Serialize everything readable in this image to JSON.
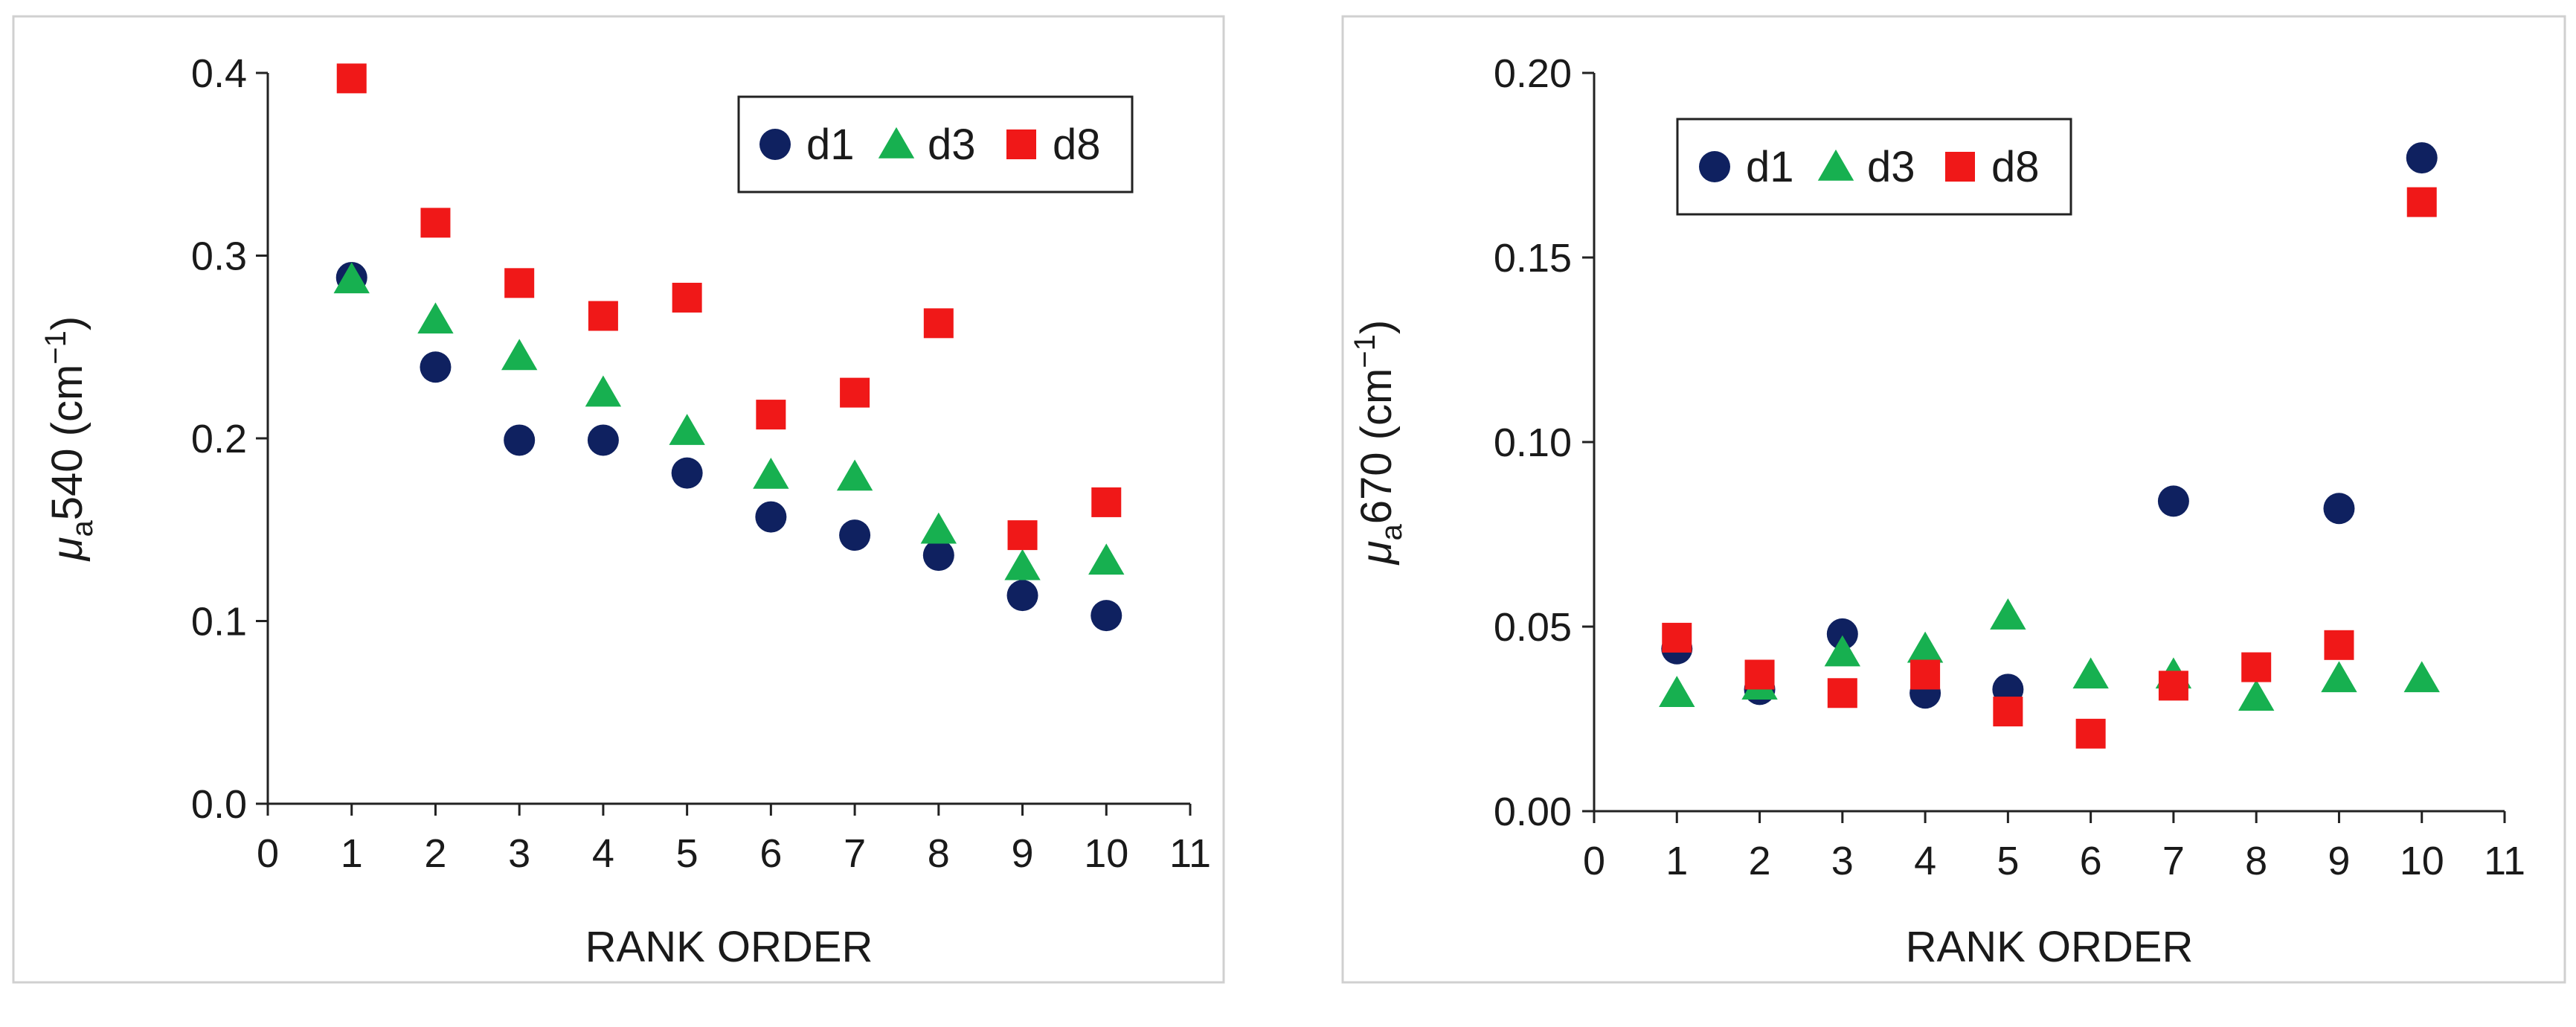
{
  "colors": {
    "d1": "#0f2160",
    "d3": "#17b050",
    "d8": "#f01818",
    "axis": "#222222",
    "frame": "#d0d0d0"
  },
  "chart_data": [
    {
      "type": "scatter",
      "xlabel": "RANK ORDER",
      "ylabel_main": "μ",
      "ylabel_sub": "a",
      "ylabel_rest": "540 (cm",
      "ylabel_sup": "−1",
      "ylabel_end": ")",
      "xlim": [
        0,
        11
      ],
      "ylim": [
        0,
        0.4
      ],
      "xticks": [
        0,
        1,
        2,
        3,
        4,
        5,
        6,
        7,
        8,
        9,
        10,
        11
      ],
      "yticks": [
        0.0,
        0.1,
        0.2,
        0.3,
        0.4
      ],
      "ytick_labels": [
        "0.0",
        "0.1",
        "0.2",
        "0.3",
        "0.4"
      ],
      "legend_position": "top-right",
      "series": [
        {
          "name": "d1",
          "marker": "circle",
          "x": [
            1,
            2,
            3,
            4,
            5,
            6,
            7,
            8,
            9,
            10
          ],
          "y": [
            0.288,
            0.239,
            0.199,
            0.199,
            0.181,
            0.157,
            0.147,
            0.136,
            0.114,
            0.103
          ]
        },
        {
          "name": "d3",
          "marker": "triangle",
          "x": [
            1,
            2,
            3,
            4,
            5,
            6,
            7,
            8,
            9,
            10
          ],
          "y": [
            0.287,
            0.265,
            0.245,
            0.225,
            0.204,
            0.18,
            0.179,
            0.15,
            0.13,
            0.133
          ]
        },
        {
          "name": "d8",
          "marker": "square",
          "x": [
            1,
            2,
            3,
            4,
            5,
            6,
            7,
            8,
            9,
            10
          ],
          "y": [
            0.397,
            0.318,
            0.285,
            0.267,
            0.277,
            0.213,
            0.225,
            0.263,
            0.147,
            0.165
          ]
        }
      ]
    },
    {
      "type": "scatter",
      "xlabel": "RANK ORDER",
      "ylabel_main": "μ",
      "ylabel_sub": "a",
      "ylabel_rest": "670 (cm",
      "ylabel_sup": "−1",
      "ylabel_end": ")",
      "xlim": [
        0,
        11
      ],
      "ylim": [
        0,
        0.2
      ],
      "xticks": [
        0,
        1,
        2,
        3,
        4,
        5,
        6,
        7,
        8,
        9,
        10,
        11
      ],
      "yticks": [
        0.0,
        0.05,
        0.1,
        0.15,
        0.2
      ],
      "ytick_labels": [
        "0.00",
        "0.05",
        "0.10",
        "0.15",
        "0.20"
      ],
      "legend_position": "top-left",
      "series": [
        {
          "name": "d1",
          "marker": "circle",
          "x": [
            1,
            2,
            3,
            4,
            5,
            6,
            7,
            8,
            9,
            10
          ],
          "y": [
            0.044,
            0.033,
            0.048,
            0.032,
            0.033,
            null,
            0.084,
            null,
            0.082,
            0.177
          ]
        },
        {
          "name": "d3",
          "marker": "triangle",
          "x": [
            1,
            2,
            3,
            4,
            5,
            6,
            7,
            8,
            9,
            10
          ],
          "y": [
            0.032,
            0.034,
            0.043,
            0.044,
            0.053,
            0.037,
            0.037,
            0.031,
            0.036,
            0.036
          ]
        },
        {
          "name": "d8",
          "marker": "square",
          "x": [
            1,
            2,
            3,
            4,
            5,
            6,
            7,
            8,
            9,
            10
          ],
          "y": [
            0.047,
            0.037,
            0.032,
            0.037,
            0.027,
            0.021,
            0.034,
            0.039,
            0.045,
            0.165
          ]
        }
      ]
    }
  ]
}
